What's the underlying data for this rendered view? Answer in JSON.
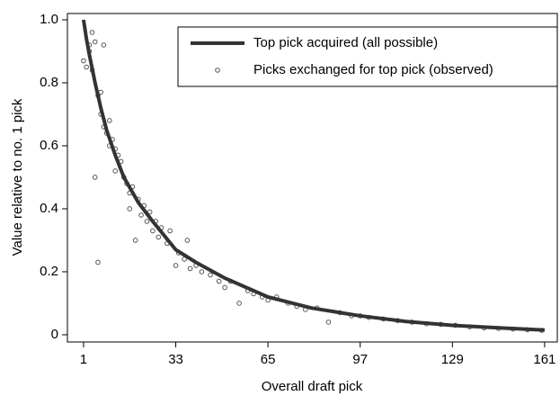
{
  "chart_data": {
    "type": "line",
    "xlabel": "Overall draft pick",
    "ylabel": "Value relative to no. 1 pick",
    "xlim": [
      -4.6,
      165.4
    ],
    "ylim": [
      -0.023,
      1.02
    ],
    "xticks": [
      1,
      33,
      65,
      97,
      129,
      161
    ],
    "yticks": [
      0,
      0.2,
      0.4,
      0.6,
      0.8,
      {
        "value": 1,
        "label": "1.0"
      }
    ],
    "grid": false,
    "legend": "upper right",
    "series": [
      {
        "name": "Top pick acquired (all possible)",
        "type": "line",
        "color": "#333333",
        "x": [
          1,
          2,
          3,
          5,
          7,
          9,
          12,
          15,
          20,
          25,
          33,
          40,
          50,
          65,
          80,
          97,
          113,
          129,
          145,
          161
        ],
        "values": [
          1.0,
          0.94,
          0.89,
          0.8,
          0.72,
          0.65,
          0.57,
          0.5,
          0.42,
          0.36,
          0.27,
          0.23,
          0.18,
          0.12,
          0.085,
          0.06,
          0.042,
          0.03,
          0.022,
          0.015
        ]
      },
      {
        "name": "Picks exchanged for top pick (observed)",
        "type": "scatter",
        "color": "#555555",
        "x": [
          1,
          2,
          3,
          3,
          4,
          4,
          5,
          5,
          6,
          6,
          7,
          7,
          8,
          8,
          9,
          10,
          10,
          11,
          12,
          12,
          13,
          14,
          15,
          16,
          17,
          17,
          18,
          19,
          20,
          21,
          22,
          23,
          24,
          25,
          26,
          27,
          28,
          30,
          31,
          33,
          34,
          36,
          37,
          38,
          40,
          42,
          45,
          48,
          50,
          52,
          55,
          58,
          60,
          63,
          65,
          68,
          72,
          75,
          78,
          82,
          86,
          90,
          94,
          97,
          100,
          105,
          110,
          115,
          120,
          125,
          130,
          135,
          140,
          145,
          150,
          155,
          160
        ],
        "values": [
          0.87,
          0.85,
          0.92,
          0.9,
          0.96,
          0.84,
          0.93,
          0.5,
          0.23,
          0.76,
          0.7,
          0.77,
          0.66,
          0.92,
          0.64,
          0.6,
          0.68,
          0.62,
          0.52,
          0.59,
          0.57,
          0.55,
          0.5,
          0.48,
          0.45,
          0.4,
          0.47,
          0.3,
          0.43,
          0.38,
          0.41,
          0.36,
          0.39,
          0.33,
          0.36,
          0.31,
          0.34,
          0.29,
          0.33,
          0.22,
          0.26,
          0.24,
          0.3,
          0.21,
          0.22,
          0.2,
          0.19,
          0.17,
          0.15,
          0.17,
          0.1,
          0.14,
          0.13,
          0.12,
          0.11,
          0.12,
          0.1,
          0.09,
          0.08,
          0.085,
          0.04,
          0.07,
          0.06,
          0.06,
          0.055,
          0.05,
          0.045,
          0.04,
          0.035,
          0.033,
          0.03,
          0.025,
          0.022,
          0.02,
          0.018,
          0.016,
          0.014
        ]
      }
    ]
  }
}
